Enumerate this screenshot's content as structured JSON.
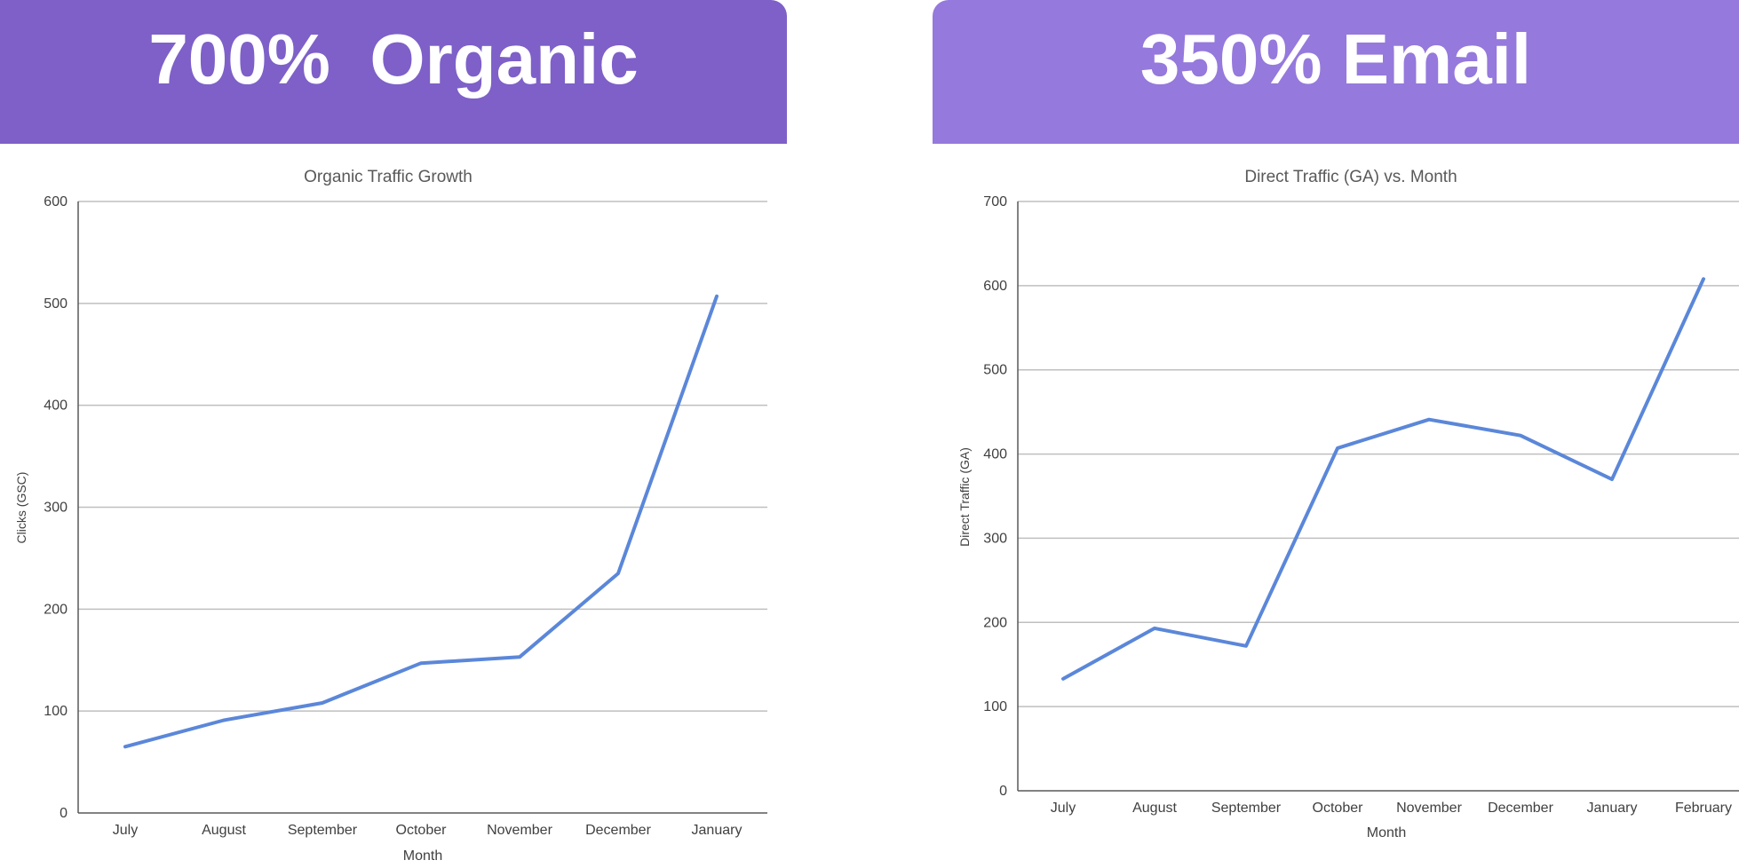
{
  "banners": {
    "left": "700%  Organic",
    "right": "350% Email"
  },
  "colors": {
    "banner_left": "#7e60c8",
    "banner_right": "#9579dc",
    "series_line": "#5b87d9",
    "gridline": "#bfbfbf"
  },
  "chart_data": [
    {
      "type": "line",
      "title": "Organic Traffic Growth",
      "xlabel": "Month",
      "ylabel": "Clicks (GSC)",
      "categories": [
        "July",
        "August",
        "September",
        "October",
        "November",
        "December",
        "January"
      ],
      "series": [
        {
          "values": [
            65,
            91,
            108,
            147,
            153,
            235,
            507
          ]
        }
      ],
      "ylim": [
        0,
        600
      ],
      "yticks": [
        "0",
        "100",
        "200",
        "300",
        "400",
        "500",
        "600"
      ],
      "grid": true,
      "legend": "none"
    },
    {
      "type": "line",
      "title": "Direct Traffic (GA) vs. Month",
      "xlabel": "Month",
      "ylabel": "Direct Traffic (GA)",
      "categories": [
        "July",
        "August",
        "September",
        "October",
        "November",
        "December",
        "January",
        "February"
      ],
      "series": [
        {
          "values": [
            133,
            193,
            172,
            407,
            441,
            422,
            370,
            608
          ]
        }
      ],
      "ylim": [
        0,
        700
      ],
      "yticks": [
        "0",
        "100",
        "200",
        "300",
        "400",
        "500",
        "600",
        "700"
      ],
      "grid": true,
      "legend": "none"
    }
  ]
}
